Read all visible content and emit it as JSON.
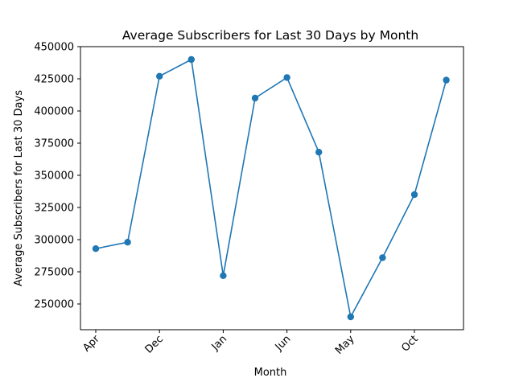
{
  "chart_data": {
    "type": "line",
    "title": "Average Subscribers for Last 30 Days by Month",
    "xlabel": "Month",
    "ylabel": "Average Subscribers for Last 30 Days",
    "ylim": [
      230000,
      450000
    ],
    "yticks": [
      250000,
      275000,
      300000,
      325000,
      350000,
      375000,
      400000,
      425000,
      450000
    ],
    "ytick_labels": [
      "250000",
      "275000",
      "300000",
      "325000",
      "350000",
      "375000",
      "400000",
      "425000",
      "450000"
    ],
    "xtick_labels": [
      "Apr",
      "Dec",
      "Jan",
      "Jun",
      "May",
      "Oct"
    ],
    "xtick_rotation_deg": 45,
    "grid": false,
    "legend": "none",
    "series": [
      {
        "color": "#1f77b4",
        "marker": "circle",
        "values": [
          293000,
          298000,
          427000,
          440000,
          272000,
          410000,
          426000,
          368000,
          240000,
          286000,
          335000,
          424000
        ]
      }
    ]
  }
}
